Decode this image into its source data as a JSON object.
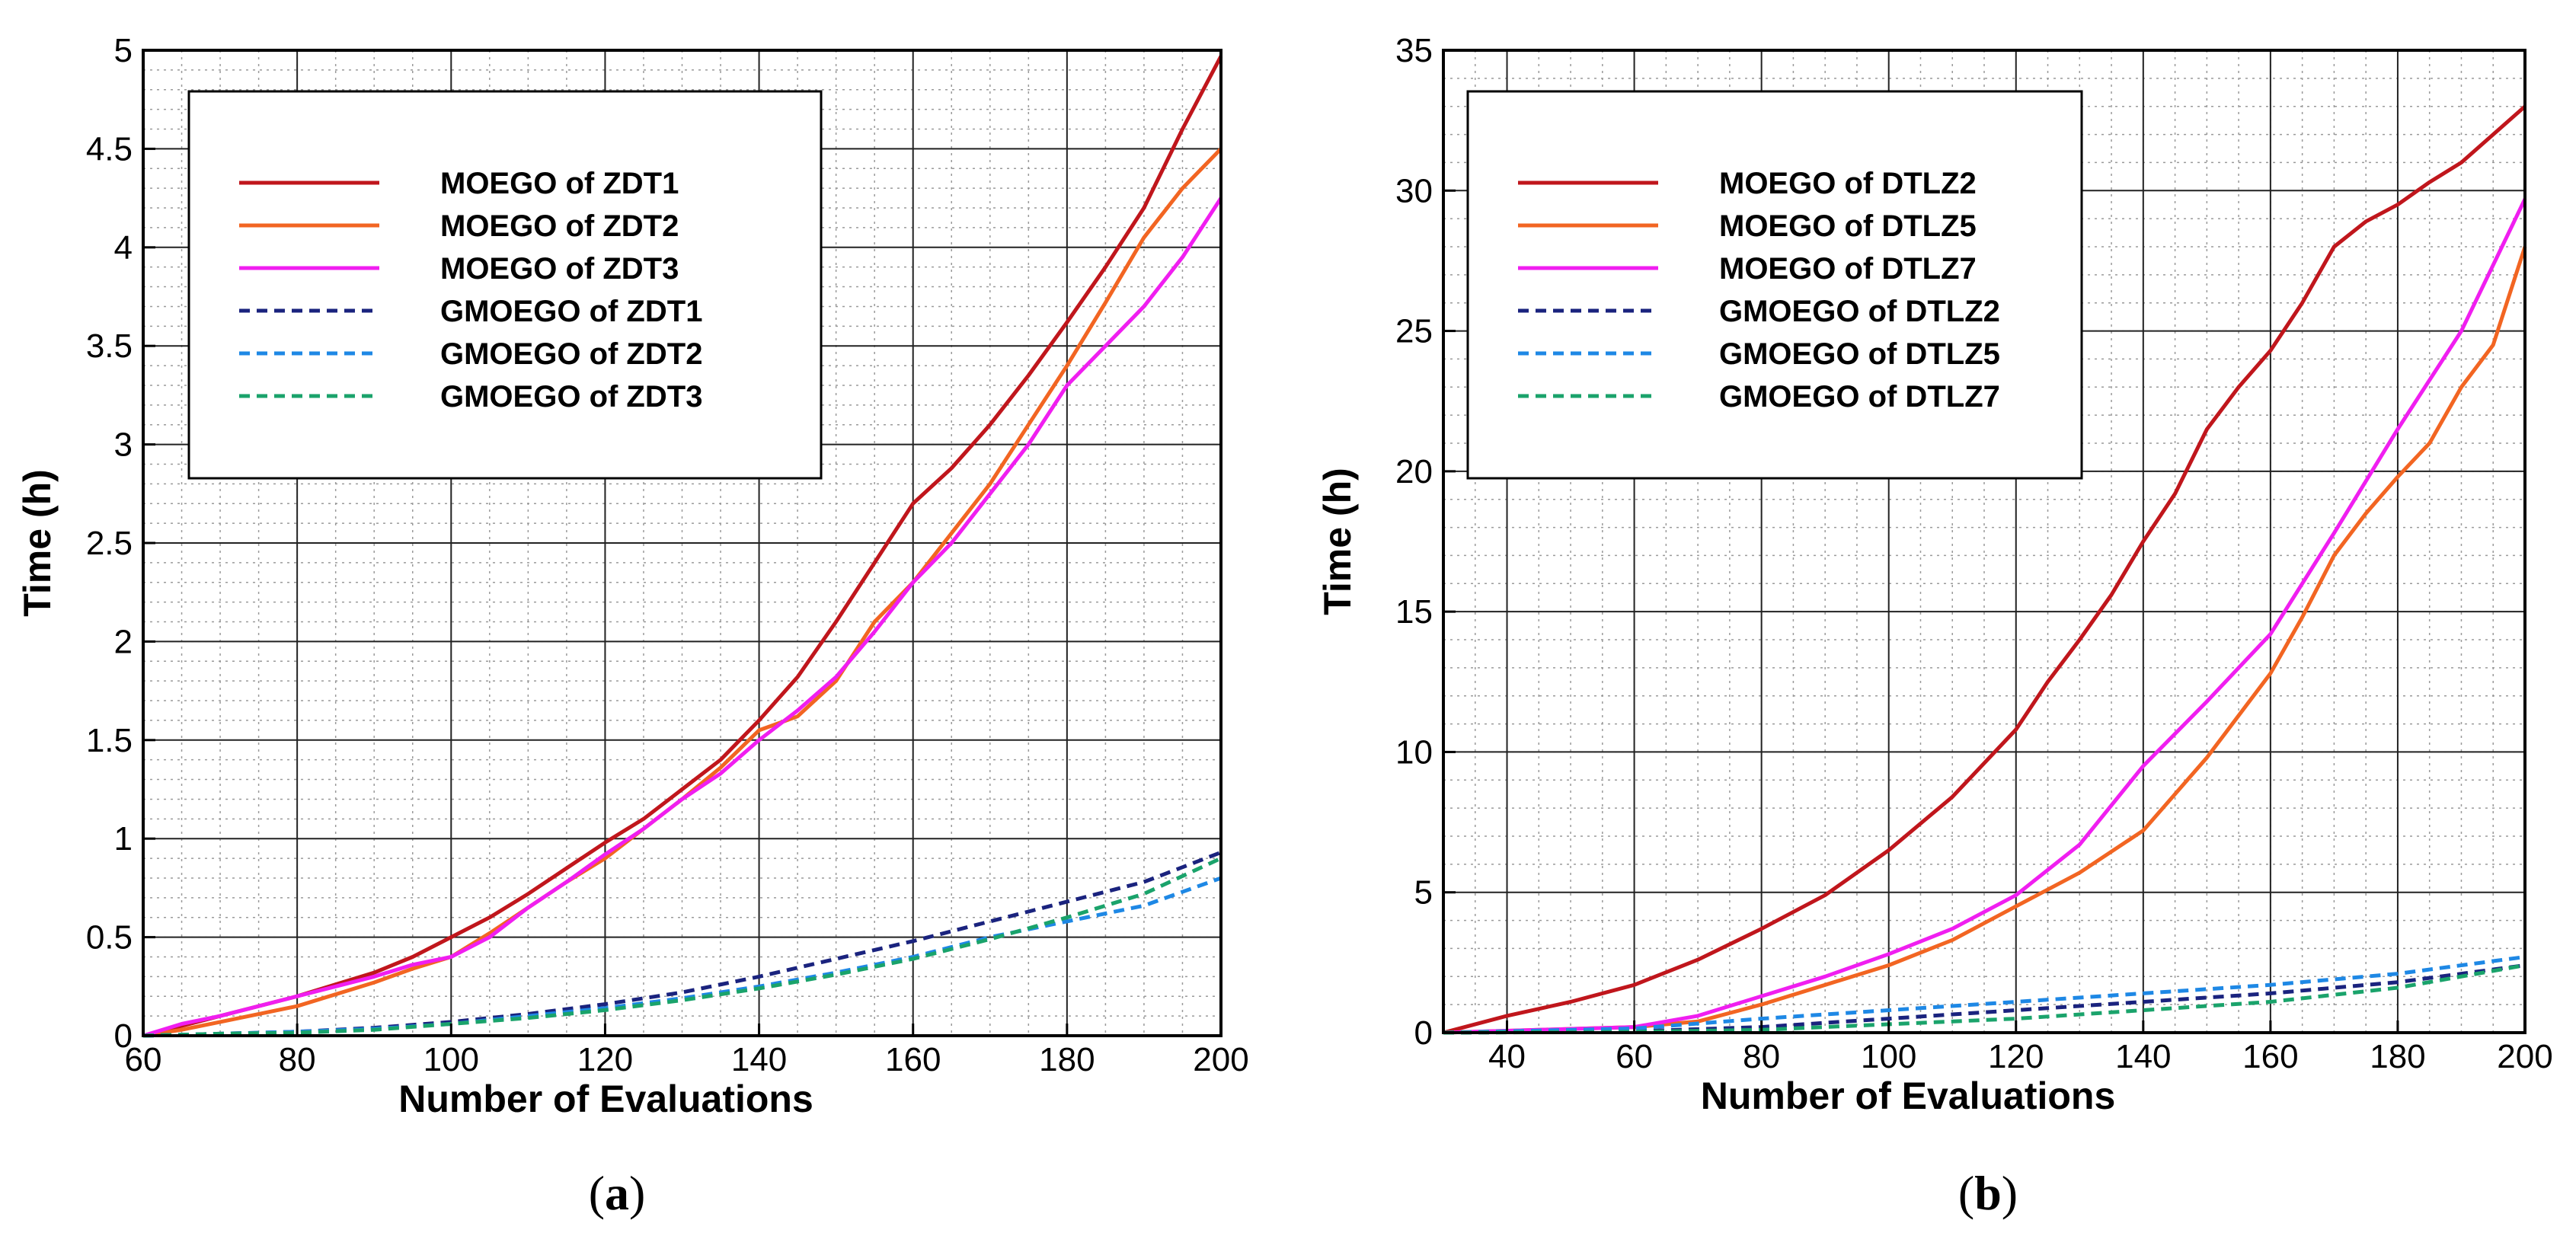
{
  "chart_data": [
    {
      "type": "line",
      "panel": "a",
      "panel_label_open": "(",
      "panel_label_letter": "a",
      "panel_label_close": ")",
      "xlabel": "Number of Evaluations",
      "ylabel": "Time (h)",
      "xlim": [
        60,
        200
      ],
      "ylim": [
        0,
        5
      ],
      "xticks": [
        60,
        80,
        100,
        120,
        140,
        160,
        180,
        200
      ],
      "xtick_labels": [
        "60",
        "80",
        "100",
        "120",
        "140",
        "160",
        "180",
        "200"
      ],
      "yticks": [
        0,
        0.5,
        1,
        1.5,
        2,
        2.5,
        3,
        3.5,
        4,
        4.5,
        5
      ],
      "ytick_labels": [
        "0",
        "0.5",
        "1",
        "1.5",
        "2",
        "2.5",
        "3",
        "3.5",
        "4",
        "4.5",
        "5"
      ],
      "grid": true,
      "legend_position": "top-left",
      "series": [
        {
          "name": "MOEGO of ZDT1",
          "color": "#c0161c",
          "dash": false,
          "x": [
            60,
            65,
            70,
            80,
            90,
            95,
            100,
            105,
            110,
            115,
            120,
            125,
            130,
            135,
            140,
            145,
            150,
            155,
            160,
            165,
            170,
            175,
            180,
            185,
            190,
            195,
            200
          ],
          "y": [
            0,
            0.05,
            0.1,
            0.2,
            0.32,
            0.4,
            0.5,
            0.6,
            0.72,
            0.85,
            0.98,
            1.1,
            1.25,
            1.4,
            1.6,
            1.82,
            2.1,
            2.4,
            2.7,
            2.88,
            3.1,
            3.35,
            3.62,
            3.9,
            4.2,
            4.6,
            4.97
          ]
        },
        {
          "name": "MOEGO of ZDT2",
          "color": "#f26522",
          "dash": false,
          "x": [
            60,
            65,
            70,
            80,
            90,
            95,
            100,
            105,
            110,
            115,
            120,
            125,
            130,
            135,
            140,
            145,
            150,
            155,
            160,
            165,
            170,
            175,
            180,
            185,
            190,
            195,
            200
          ],
          "y": [
            0,
            0.03,
            0.07,
            0.15,
            0.27,
            0.34,
            0.4,
            0.52,
            0.65,
            0.78,
            0.9,
            1.05,
            1.2,
            1.36,
            1.55,
            1.62,
            1.8,
            2.1,
            2.3,
            2.55,
            2.8,
            3.1,
            3.4,
            3.72,
            4.05,
            4.3,
            4.5
          ]
        },
        {
          "name": "MOEGO of ZDT3",
          "color": "#f01ef0",
          "dash": false,
          "x": [
            60,
            65,
            70,
            80,
            90,
            95,
            100,
            105,
            110,
            115,
            120,
            125,
            130,
            135,
            140,
            145,
            150,
            155,
            160,
            165,
            170,
            175,
            180,
            185,
            190,
            195,
            200
          ],
          "y": [
            0,
            0.06,
            0.1,
            0.2,
            0.3,
            0.36,
            0.4,
            0.5,
            0.65,
            0.78,
            0.92,
            1.05,
            1.2,
            1.33,
            1.5,
            1.65,
            1.82,
            2.05,
            2.3,
            2.5,
            2.75,
            3.0,
            3.3,
            3.5,
            3.7,
            3.95,
            4.25
          ]
        },
        {
          "name": "GMOEGO of ZDT1",
          "color": "#1a237e",
          "dash": true,
          "x": [
            60,
            70,
            80,
            90,
            100,
            110,
            120,
            130,
            140,
            150,
            160,
            170,
            180,
            190,
            200
          ],
          "y": [
            0,
            0.01,
            0.02,
            0.04,
            0.07,
            0.11,
            0.16,
            0.22,
            0.3,
            0.39,
            0.48,
            0.58,
            0.68,
            0.78,
            0.93
          ]
        },
        {
          "name": "GMOEGO of ZDT2",
          "color": "#1e88e5",
          "dash": true,
          "x": [
            60,
            70,
            80,
            90,
            100,
            110,
            120,
            130,
            140,
            150,
            160,
            170,
            180,
            190,
            200
          ],
          "y": [
            0,
            0.01,
            0.02,
            0.035,
            0.06,
            0.1,
            0.14,
            0.19,
            0.25,
            0.32,
            0.4,
            0.5,
            0.58,
            0.66,
            0.8
          ]
        },
        {
          "name": "GMOEGO of ZDT3",
          "color": "#1aa36b",
          "dash": true,
          "x": [
            60,
            70,
            80,
            90,
            100,
            110,
            120,
            130,
            140,
            150,
            160,
            170,
            180,
            190,
            200
          ],
          "y": [
            0,
            0.01,
            0.015,
            0.03,
            0.06,
            0.09,
            0.13,
            0.18,
            0.24,
            0.31,
            0.39,
            0.49,
            0.6,
            0.72,
            0.9
          ]
        }
      ]
    },
    {
      "type": "line",
      "panel": "b",
      "panel_label_open": "(",
      "panel_label_letter": "b",
      "panel_label_close": ")",
      "xlabel": "Number of Evaluations",
      "ylabel": "Time (h)",
      "xlim": [
        30,
        200
      ],
      "ylim": [
        0,
        35
      ],
      "xticks": [
        40,
        60,
        80,
        100,
        120,
        140,
        160,
        180,
        200
      ],
      "xtick_labels": [
        "40",
        "60",
        "80",
        "100",
        "120",
        "140",
        "160",
        "180",
        "200"
      ],
      "yticks": [
        0,
        5,
        10,
        15,
        20,
        25,
        30,
        35
      ],
      "ytick_labels": [
        "0",
        "5",
        "10",
        "15",
        "20",
        "25",
        "30",
        "35"
      ],
      "grid": true,
      "legend_position": "top-left",
      "series": [
        {
          "name": "MOEGO of DTLZ2",
          "color": "#c0161c",
          "dash": false,
          "x": [
            30,
            40,
            50,
            60,
            70,
            80,
            90,
            100,
            110,
            120,
            125,
            130,
            135,
            140,
            145,
            150,
            155,
            160,
            165,
            170,
            175,
            180,
            185,
            190,
            195,
            200
          ],
          "y": [
            0,
            0.6,
            1.1,
            1.7,
            2.6,
            3.7,
            4.9,
            6.5,
            8.4,
            10.8,
            12.5,
            14.0,
            15.6,
            17.5,
            19.2,
            21.5,
            23.0,
            24.3,
            26.0,
            28.0,
            28.9,
            29.5,
            30.3,
            31.0,
            32.0,
            33.0
          ]
        },
        {
          "name": "MOEGO of DTLZ5",
          "color": "#f26522",
          "dash": false,
          "x": [
            30,
            60,
            70,
            80,
            90,
            100,
            110,
            120,
            130,
            140,
            150,
            160,
            165,
            170,
            175,
            180,
            185,
            190,
            195,
            200
          ],
          "y": [
            0,
            0.2,
            0.4,
            1.0,
            1.7,
            2.4,
            3.3,
            4.5,
            5.7,
            7.2,
            9.8,
            12.8,
            14.8,
            17.0,
            18.5,
            19.8,
            21.0,
            23.0,
            24.5,
            28.0
          ]
        },
        {
          "name": "MOEGO of DTLZ7",
          "color": "#f01ef0",
          "dash": false,
          "x": [
            30,
            60,
            70,
            80,
            90,
            100,
            110,
            120,
            130,
            140,
            150,
            160,
            170,
            180,
            190,
            200
          ],
          "y": [
            0,
            0.2,
            0.6,
            1.3,
            2.0,
            2.8,
            3.7,
            4.9,
            6.7,
            9.5,
            11.8,
            14.2,
            17.8,
            21.5,
            25.0,
            29.7
          ]
        },
        {
          "name": "GMOEGO of DTLZ2",
          "color": "#1a237e",
          "dash": true,
          "x": [
            30,
            60,
            80,
            100,
            120,
            140,
            160,
            180,
            200
          ],
          "y": [
            0,
            0.05,
            0.2,
            0.5,
            0.8,
            1.1,
            1.4,
            1.8,
            2.4
          ]
        },
        {
          "name": "GMOEGO of DTLZ5",
          "color": "#1e88e5",
          "dash": true,
          "x": [
            30,
            60,
            80,
            100,
            120,
            140,
            160,
            180,
            200
          ],
          "y": [
            0,
            0.15,
            0.5,
            0.8,
            1.1,
            1.4,
            1.7,
            2.1,
            2.7
          ]
        },
        {
          "name": "GMOEGO of DTLZ7",
          "color": "#1aa36b",
          "dash": true,
          "x": [
            30,
            60,
            80,
            100,
            120,
            140,
            160,
            180,
            200
          ],
          "y": [
            0,
            0.03,
            0.1,
            0.3,
            0.5,
            0.8,
            1.1,
            1.6,
            2.4
          ]
        }
      ]
    }
  ]
}
